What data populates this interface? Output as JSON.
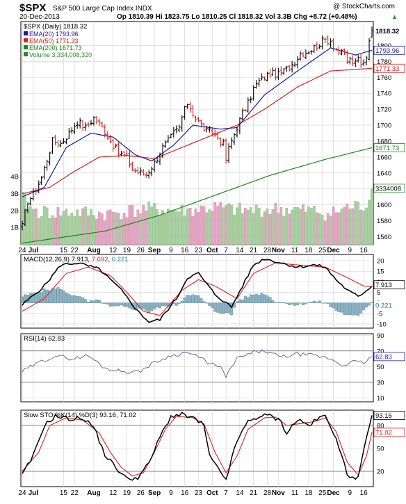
{
  "header": {
    "title": "$SPX",
    "subtitle": "S&P 500 Large Cap Index INDX",
    "watermark": "@ StockCharts.com",
    "date": "20-Dec-2013",
    "quote": "Op 1810.39  Hi 1823.75  Lo 1810.25  Cl 1818.32  Vol 3.3B  Chg +8.72 (+0.48%)",
    "quote_arrow": "▲"
  },
  "x_labels": [
    {
      "i": 0,
      "label": "24"
    },
    {
      "i": 4,
      "label": "Jul"
    },
    {
      "i": 15,
      "label": "15"
    },
    {
      "i": 19,
      "label": "22"
    },
    {
      "i": 26,
      "label": "Aug"
    },
    {
      "i": 33,
      "label": "12"
    },
    {
      "i": 38,
      "label": "19"
    },
    {
      "i": 43,
      "label": "26"
    },
    {
      "i": 48,
      "label": "Sep"
    },
    {
      "i": 54,
      "label": "9"
    },
    {
      "i": 59,
      "label": "16"
    },
    {
      "i": 64,
      "label": "23"
    },
    {
      "i": 69,
      "label": "Oct"
    },
    {
      "i": 74,
      "label": "7"
    },
    {
      "i": 79,
      "label": "14"
    },
    {
      "i": 84,
      "label": "21"
    },
    {
      "i": 89,
      "label": "28"
    },
    {
      "i": 93,
      "label": "Nov"
    },
    {
      "i": 99,
      "label": "11"
    },
    {
      "i": 104,
      "label": "18"
    },
    {
      "i": 109,
      "label": "25"
    },
    {
      "i": 113,
      "label": "Dec"
    },
    {
      "i": 119,
      "label": "9"
    },
    {
      "i": 124,
      "label": "16"
    }
  ],
  "chart_data": [
    {
      "type": "candlestick",
      "title": "$SPX (Daily) 1818.32",
      "ylim": [
        1550,
        1830
      ],
      "y_ticks": [
        1560,
        1580,
        1600,
        1620,
        1640,
        1660,
        1680,
        1700,
        1720,
        1740,
        1760,
        1780,
        1800
      ],
      "volume_ticks": [
        {
          "v": 1,
          "label": "1B"
        },
        {
          "v": 2,
          "label": "2B"
        },
        {
          "v": 3,
          "label": "3B"
        },
        {
          "v": 4,
          "label": "4B"
        }
      ],
      "legend": [
        {
          "label": "EMA(20) 1793.96",
          "color": "#1a1aa8"
        },
        {
          "label": "EMA(50) 1771.33",
          "color": "#d62020"
        },
        {
          "label": "EMA(200) 1671.73",
          "color": "#138a13"
        },
        {
          "label": "Volume 3,334,008,320",
          "color": "#2a8a2a"
        }
      ],
      "last_labels": [
        {
          "v": 1818.32,
          "text": "1818.32",
          "bg": "#ffffff",
          "fg": "#000000",
          "bold": true
        },
        {
          "v": 1793.96,
          "text": "1793.96",
          "bg": "#ffffff",
          "fg": "#1a1aa8",
          "border": "#1a1aa8"
        },
        {
          "v": 1771.33,
          "text": "1771.33",
          "bg": "#ffffff",
          "fg": "#d62020",
          "border": "#d62020"
        },
        {
          "v": 1671.73,
          "text": "1671.73",
          "bg": "#ffffff",
          "fg": "#138a13",
          "border": "#138a13"
        }
      ],
      "volume_last_label": "3334008",
      "close_key": [
        [
          0,
          1573
        ],
        [
          2,
          1605
        ],
        [
          4,
          1613
        ],
        [
          7,
          1634
        ],
        [
          11,
          1680
        ],
        [
          14,
          1677
        ],
        [
          17,
          1690
        ],
        [
          20,
          1705
        ],
        [
          23,
          1697
        ],
        [
          26,
          1709
        ],
        [
          29,
          1698
        ],
        [
          32,
          1680
        ],
        [
          35,
          1665
        ],
        [
          38,
          1660
        ],
        [
          40,
          1645
        ],
        [
          42,
          1641
        ],
        [
          45,
          1638
        ],
        [
          48,
          1653
        ],
        [
          51,
          1672
        ],
        [
          53,
          1680
        ],
        [
          55,
          1690
        ],
        [
          57,
          1697
        ],
        [
          58,
          1710
        ],
        [
          60,
          1728
        ],
        [
          61,
          1722
        ],
        [
          63,
          1708
        ],
        [
          65,
          1700
        ],
        [
          67,
          1692
        ],
        [
          69,
          1690
        ],
        [
          71,
          1685
        ],
        [
          73,
          1676
        ],
        [
          74,
          1657
        ],
        [
          75,
          1670
        ],
        [
          76,
          1680
        ],
        [
          78,
          1698
        ],
        [
          80,
          1715
        ],
        [
          82,
          1727
        ],
        [
          84,
          1746
        ],
        [
          86,
          1755
        ],
        [
          88,
          1760
        ],
        [
          90,
          1765
        ],
        [
          93,
          1763
        ],
        [
          95,
          1768
        ],
        [
          97,
          1773
        ],
        [
          99,
          1780
        ],
        [
          101,
          1790
        ],
        [
          103,
          1792
        ],
        [
          105,
          1795
        ],
        [
          107,
          1800
        ],
        [
          109,
          1805
        ],
        [
          110,
          1807
        ],
        [
          112,
          1806
        ],
        [
          113,
          1800
        ],
        [
          115,
          1792
        ],
        [
          117,
          1788
        ],
        [
          118,
          1780
        ],
        [
          119,
          1782
        ],
        [
          121,
          1777
        ],
        [
          122,
          1783
        ],
        [
          123,
          1775
        ],
        [
          124,
          1781
        ],
        [
          125,
          1786
        ],
        [
          126,
          1810
        ],
        [
          127,
          1818.32
        ]
      ],
      "ema20_key": [
        [
          0,
          1610
        ],
        [
          8,
          1622
        ],
        [
          16,
          1672
        ],
        [
          25,
          1690
        ],
        [
          33,
          1685
        ],
        [
          41,
          1663
        ],
        [
          47,
          1655
        ],
        [
          55,
          1675
        ],
        [
          62,
          1700
        ],
        [
          72,
          1695
        ],
        [
          78,
          1697
        ],
        [
          88,
          1738
        ],
        [
          100,
          1768
        ],
        [
          112,
          1797
        ],
        [
          121,
          1788
        ],
        [
          127,
          1793.96
        ]
      ],
      "ema50_key": [
        [
          0,
          1614
        ],
        [
          10,
          1622
        ],
        [
          18,
          1640
        ],
        [
          28,
          1660
        ],
        [
          38,
          1662
        ],
        [
          48,
          1658
        ],
        [
          58,
          1672
        ],
        [
          68,
          1686
        ],
        [
          78,
          1700
        ],
        [
          88,
          1720
        ],
        [
          100,
          1748
        ],
        [
          112,
          1768
        ],
        [
          127,
          1771.33
        ]
      ],
      "ema200_key": [
        [
          0,
          1552
        ],
        [
          30,
          1567
        ],
        [
          50,
          1587
        ],
        [
          70,
          1612
        ],
        [
          90,
          1637
        ],
        [
          110,
          1657
        ],
        [
          127,
          1671.73
        ]
      ],
      "volume_key": [
        [
          0,
          2.8
        ],
        [
          4,
          2.0
        ],
        [
          10,
          1.9
        ],
        [
          20,
          1.9
        ],
        [
          30,
          1.8
        ],
        [
          45,
          2.1
        ],
        [
          60,
          2.0
        ],
        [
          70,
          2.2
        ],
        [
          80,
          2.0
        ],
        [
          92,
          2.1
        ],
        [
          106,
          2.0
        ],
        [
          112,
          1.8
        ],
        [
          118,
          2.2
        ],
        [
          124,
          2.3
        ],
        [
          126,
          2.6
        ],
        [
          127,
          3.33
        ]
      ]
    },
    {
      "type": "line",
      "title": "MACD(12,26,9) 7.913, 7.692, 0.221",
      "title_parts": [
        {
          "text": "MACD(12,26,9) ",
          "color": "#000000"
        },
        {
          "text": "7.913",
          "color": "#000000"
        },
        {
          "text": ", ",
          "color": "#000000"
        },
        {
          "text": "7.692",
          "color": "#d62020"
        },
        {
          "text": ", ",
          "color": "#000000"
        },
        {
          "text": "0.221",
          "color": "#138a8a"
        }
      ],
      "ylim": [
        -12,
        23
      ],
      "y_ticks": [
        -10,
        -5,
        0,
        5,
        10,
        15,
        20
      ],
      "last_labels": [
        {
          "v": 7.913,
          "text": "7.913",
          "fg": "#000000",
          "border": "#000000"
        },
        {
          "v": 0.221,
          "text": "0.221",
          "fg": "#1a7a8a",
          "border": "none"
        }
      ],
      "macd_key": [
        [
          0,
          -1
        ],
        [
          8,
          8
        ],
        [
          14,
          18
        ],
        [
          20,
          19
        ],
        [
          28,
          16
        ],
        [
          36,
          6
        ],
        [
          42,
          -4
        ],
        [
          46,
          -9
        ],
        [
          50,
          -8
        ],
        [
          56,
          2
        ],
        [
          60,
          12
        ],
        [
          64,
          14
        ],
        [
          70,
          4
        ],
        [
          76,
          -2
        ],
        [
          80,
          8
        ],
        [
          84,
          18
        ],
        [
          88,
          21
        ],
        [
          94,
          19
        ],
        [
          100,
          17
        ],
        [
          106,
          18
        ],
        [
          110,
          17
        ],
        [
          114,
          11
        ],
        [
          118,
          6
        ],
        [
          122,
          3
        ],
        [
          127,
          7.913
        ]
      ],
      "signal_key": [
        [
          0,
          -4
        ],
        [
          8,
          2
        ],
        [
          16,
          14
        ],
        [
          24,
          17
        ],
        [
          32,
          13
        ],
        [
          38,
          5
        ],
        [
          44,
          -4
        ],
        [
          50,
          -6
        ],
        [
          58,
          6
        ],
        [
          64,
          11
        ],
        [
          70,
          8
        ],
        [
          78,
          2
        ],
        [
          84,
          14
        ],
        [
          92,
          19
        ],
        [
          100,
          18
        ],
        [
          110,
          17
        ],
        [
          118,
          12
        ],
        [
          124,
          8
        ],
        [
          127,
          7.692
        ]
      ]
    },
    {
      "type": "line",
      "title": "RSI(14) 62.83",
      "ylim": [
        5,
        92
      ],
      "y_ticks": [
        10,
        30,
        50,
        70,
        90
      ],
      "ref_lines": [
        30,
        70
      ],
      "last_labels": [
        {
          "v": 62.83,
          "text": "62.83",
          "fg": "#1a1aa8",
          "border": "#1a1aa8"
        }
      ],
      "rsi_key": [
        [
          0,
          44
        ],
        [
          6,
          55
        ],
        [
          12,
          64
        ],
        [
          18,
          60
        ],
        [
          24,
          64
        ],
        [
          30,
          48
        ],
        [
          36,
          44
        ],
        [
          42,
          43
        ],
        [
          48,
          55
        ],
        [
          54,
          64
        ],
        [
          60,
          68
        ],
        [
          64,
          62
        ],
        [
          68,
          55
        ],
        [
          72,
          48
        ],
        [
          74,
          38
        ],
        [
          78,
          60
        ],
        [
          84,
          68
        ],
        [
          88,
          70
        ],
        [
          94,
          62
        ],
        [
          100,
          66
        ],
        [
          106,
          64
        ],
        [
          112,
          60
        ],
        [
          116,
          52
        ],
        [
          120,
          56
        ],
        [
          124,
          55
        ],
        [
          127,
          62.83
        ]
      ]
    },
    {
      "type": "line",
      "title": "Slow STO %K(14) %D(3) 93.16, 71.02",
      "ylim": [
        0,
        100
      ],
      "y_ticks": [
        20,
        50,
        80
      ],
      "ref_lines": [
        20,
        80
      ],
      "last_labels": [
        {
          "v": 93.16,
          "text": "93.16",
          "fg": "#000000",
          "border": "#000000"
        },
        {
          "v": 71.02,
          "text": "71.02",
          "fg": "#d62020",
          "border": "#d62020"
        }
      ],
      "k_key": [
        [
          0,
          15
        ],
        [
          4,
          40
        ],
        [
          8,
          80
        ],
        [
          12,
          92
        ],
        [
          18,
          88
        ],
        [
          22,
          90
        ],
        [
          26,
          78
        ],
        [
          30,
          42
        ],
        [
          34,
          25
        ],
        [
          38,
          10
        ],
        [
          42,
          12
        ],
        [
          46,
          30
        ],
        [
          50,
          65
        ],
        [
          54,
          92
        ],
        [
          58,
          94
        ],
        [
          62,
          90
        ],
        [
          66,
          80
        ],
        [
          68,
          40
        ],
        [
          72,
          18
        ],
        [
          74,
          10
        ],
        [
          78,
          60
        ],
        [
          82,
          85
        ],
        [
          86,
          92
        ],
        [
          90,
          93
        ],
        [
          94,
          85
        ],
        [
          96,
          70
        ],
        [
          100,
          88
        ],
        [
          104,
          80
        ],
        [
          108,
          90
        ],
        [
          110,
          92
        ],
        [
          114,
          65
        ],
        [
          118,
          15
        ],
        [
          122,
          12
        ],
        [
          126,
          78
        ],
        [
          127,
          93.16
        ]
      ],
      "d_key": [
        [
          0,
          20
        ],
        [
          6,
          45
        ],
        [
          10,
          80
        ],
        [
          16,
          90
        ],
        [
          22,
          87
        ],
        [
          28,
          70
        ],
        [
          32,
          45
        ],
        [
          36,
          25
        ],
        [
          40,
          14
        ],
        [
          44,
          18
        ],
        [
          48,
          45
        ],
        [
          52,
          75
        ],
        [
          56,
          92
        ],
        [
          62,
          90
        ],
        [
          66,
          82
        ],
        [
          70,
          45
        ],
        [
          74,
          18
        ],
        [
          78,
          40
        ],
        [
          82,
          75
        ],
        [
          88,
          90
        ],
        [
          92,
          91
        ],
        [
          96,
          80
        ],
        [
          100,
          82
        ],
        [
          106,
          85
        ],
        [
          110,
          90
        ],
        [
          114,
          72
        ],
        [
          118,
          32
        ],
        [
          122,
          15
        ],
        [
          125,
          40
        ],
        [
          127,
          71.02
        ]
      ]
    }
  ]
}
